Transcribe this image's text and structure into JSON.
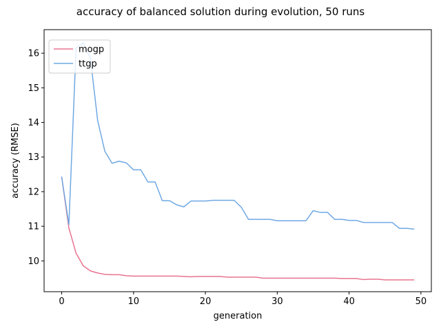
{
  "chart_data": {
    "type": "line",
    "title": "accuracy of balanced solution during evolution, 50 runs",
    "xlabel": "generation",
    "ylabel": "accuracy (RMSE)",
    "xlim": [
      -2.45,
      51.45
    ],
    "ylim": [
      9.11,
      16.68
    ],
    "xticks": [
      0,
      10,
      20,
      30,
      40,
      50
    ],
    "yticks": [
      10,
      11,
      12,
      13,
      14,
      15,
      16
    ],
    "grid": false,
    "legend_position": "upper-left",
    "x": [
      0,
      1,
      2,
      3,
      4,
      5,
      6,
      7,
      8,
      9,
      10,
      11,
      12,
      13,
      14,
      15,
      16,
      17,
      18,
      19,
      20,
      21,
      22,
      23,
      24,
      25,
      26,
      27,
      28,
      29,
      30,
      31,
      32,
      33,
      34,
      35,
      36,
      37,
      38,
      39,
      40,
      41,
      42,
      43,
      44,
      45,
      46,
      47,
      48,
      49
    ],
    "series": [
      {
        "name": "mogp",
        "color": "#e8738f",
        "values": [
          12.42,
          10.95,
          10.22,
          9.86,
          9.71,
          9.65,
          9.61,
          9.6,
          9.6,
          9.57,
          9.56,
          9.56,
          9.56,
          9.56,
          9.56,
          9.56,
          9.56,
          9.55,
          9.54,
          9.55,
          9.55,
          9.55,
          9.55,
          9.53,
          9.53,
          9.53,
          9.53,
          9.53,
          9.5,
          9.5,
          9.5,
          9.5,
          9.5,
          9.5,
          9.5,
          9.5,
          9.5,
          9.5,
          9.5,
          9.49,
          9.49,
          9.49,
          9.46,
          9.47,
          9.47,
          9.45,
          9.45,
          9.45,
          9.45,
          9.45
        ]
      },
      {
        "name": "ttgp",
        "color": "#6fa8e3",
        "values": [
          12.42,
          11.05,
          16.15,
          16.3,
          15.85,
          14.06,
          13.17,
          12.82,
          12.88,
          12.83,
          12.63,
          12.63,
          12.28,
          12.28,
          11.74,
          11.74,
          11.62,
          11.56,
          11.73,
          11.73,
          11.73,
          11.75,
          11.75,
          11.75,
          11.75,
          11.55,
          11.2,
          11.2,
          11.2,
          11.2,
          11.16,
          11.16,
          11.16,
          11.16,
          11.16,
          11.45,
          11.4,
          11.4,
          11.2,
          11.2,
          11.17,
          11.17,
          11.11,
          11.11,
          11.11,
          11.11,
          11.11,
          10.94,
          10.94,
          10.92
        ]
      }
    ]
  }
}
